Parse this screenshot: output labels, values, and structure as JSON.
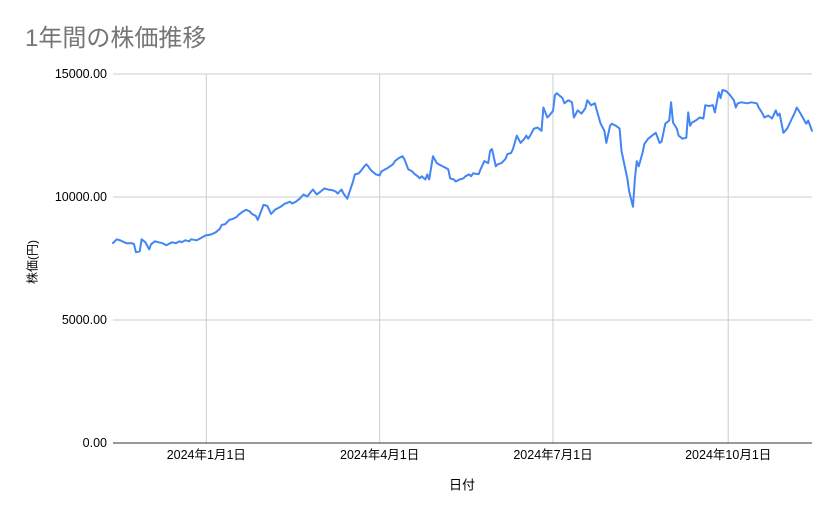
{
  "page": {
    "background": "#ffffff"
  },
  "header": {
    "title": "1年間の株価推移"
  },
  "chart_data": {
    "type": "line",
    "title": "1年間の株価推移",
    "xlabel": "日付",
    "ylabel": "株価(円)",
    "grid": true,
    "legend": "none",
    "colors": {
      "line": "#4285F4",
      "grid": "#cccccc",
      "axis": "#333333",
      "title_text": "#757575",
      "tick_text": "#000000"
    },
    "y_axis": {
      "min": 0,
      "max": 15000,
      "tick_step": 5000,
      "ticks": [
        {
          "value": 15000,
          "label": "15000.00"
        },
        {
          "value": 10000,
          "label": "10000.00"
        },
        {
          "value": 5000,
          "label": "5000.00"
        },
        {
          "value": 0,
          "label": "0.00"
        }
      ]
    },
    "x_axis": {
      "start_date": "2023-11-13",
      "end_date": "2024-11-14",
      "ticks": [
        {
          "date": "2024-01-01",
          "label": "2024年1月1日"
        },
        {
          "date": "2024-04-01",
          "label": "2024年4月1日"
        },
        {
          "date": "2024-07-01",
          "label": "2024年7月1日"
        },
        {
          "date": "2024-10-01",
          "label": "2024年10月1日"
        }
      ]
    },
    "series": [
      {
        "name": "株価",
        "points": [
          [
            "2023-11-13",
            8130
          ],
          [
            "2023-11-15",
            8280
          ],
          [
            "2023-11-17",
            8230
          ],
          [
            "2023-11-19",
            8160
          ],
          [
            "2023-11-20",
            8120
          ],
          [
            "2023-11-23",
            8120
          ],
          [
            "2023-11-24",
            8080
          ],
          [
            "2023-11-25",
            7760
          ],
          [
            "2023-11-27",
            7790
          ],
          [
            "2023-11-28",
            8280
          ],
          [
            "2023-11-30",
            8160
          ],
          [
            "2023-12-02",
            7870
          ],
          [
            "2023-12-03",
            8080
          ],
          [
            "2023-12-05",
            8200
          ],
          [
            "2023-12-07",
            8160
          ],
          [
            "2023-12-09",
            8120
          ],
          [
            "2023-12-11",
            8040
          ],
          [
            "2023-12-12",
            8080
          ],
          [
            "2023-12-14",
            8160
          ],
          [
            "2023-12-16",
            8120
          ],
          [
            "2023-12-18",
            8200
          ],
          [
            "2023-12-19",
            8160
          ],
          [
            "2023-12-21",
            8240
          ],
          [
            "2023-12-23",
            8200
          ],
          [
            "2023-12-24",
            8280
          ],
          [
            "2023-12-27",
            8240
          ],
          [
            "2023-12-28",
            8280
          ],
          [
            "2023-12-30",
            8370
          ],
          [
            "2024-01-01",
            8450
          ],
          [
            "2024-01-02",
            8450
          ],
          [
            "2024-01-04",
            8490
          ],
          [
            "2024-01-06",
            8570
          ],
          [
            "2024-01-08",
            8700
          ],
          [
            "2024-01-09",
            8860
          ],
          [
            "2024-01-11",
            8900
          ],
          [
            "2024-01-13",
            9070
          ],
          [
            "2024-01-15",
            9110
          ],
          [
            "2024-01-17",
            9190
          ],
          [
            "2024-01-18",
            9280
          ],
          [
            "2024-01-20",
            9400
          ],
          [
            "2024-01-22",
            9480
          ],
          [
            "2024-01-24",
            9400
          ],
          [
            "2024-01-25",
            9310
          ],
          [
            "2024-01-27",
            9230
          ],
          [
            "2024-01-28",
            9070
          ],
          [
            "2024-01-31",
            9680
          ],
          [
            "2024-02-02",
            9640
          ],
          [
            "2024-02-04",
            9310
          ],
          [
            "2024-02-06",
            9480
          ],
          [
            "2024-02-09",
            9600
          ],
          [
            "2024-02-11",
            9720
          ],
          [
            "2024-02-14",
            9810
          ],
          [
            "2024-02-15",
            9730
          ],
          [
            "2024-02-17",
            9810
          ],
          [
            "2024-02-19",
            9930
          ],
          [
            "2024-02-21",
            10100
          ],
          [
            "2024-02-23",
            10020
          ],
          [
            "2024-02-25",
            10220
          ],
          [
            "2024-02-26",
            10300
          ],
          [
            "2024-02-28",
            10100
          ],
          [
            "2024-03-01",
            10220
          ],
          [
            "2024-03-03",
            10350
          ],
          [
            "2024-03-05",
            10300
          ],
          [
            "2024-03-07",
            10280
          ],
          [
            "2024-03-09",
            10220
          ],
          [
            "2024-03-10",
            10140
          ],
          [
            "2024-03-12",
            10300
          ],
          [
            "2024-03-13",
            10140
          ],
          [
            "2024-03-15",
            9930
          ],
          [
            "2024-03-18",
            10630
          ],
          [
            "2024-03-19",
            10920
          ],
          [
            "2024-03-21",
            10960
          ],
          [
            "2024-03-22",
            11050
          ],
          [
            "2024-03-24",
            11250
          ],
          [
            "2024-03-25",
            11330
          ],
          [
            "2024-03-26",
            11250
          ],
          [
            "2024-03-27",
            11130
          ],
          [
            "2024-03-28",
            11050
          ],
          [
            "2024-03-30",
            10920
          ],
          [
            "2024-04-01",
            10880
          ],
          [
            "2024-04-02",
            11050
          ],
          [
            "2024-04-04",
            11130
          ],
          [
            "2024-04-05",
            11170
          ],
          [
            "2024-04-08",
            11330
          ],
          [
            "2024-04-09",
            11460
          ],
          [
            "2024-04-11",
            11580
          ],
          [
            "2024-04-13",
            11660
          ],
          [
            "2024-04-14",
            11540
          ],
          [
            "2024-04-16",
            11130
          ],
          [
            "2024-04-18",
            11050
          ],
          [
            "2024-04-19",
            10960
          ],
          [
            "2024-04-21",
            10840
          ],
          [
            "2024-04-22",
            10760
          ],
          [
            "2024-04-23",
            10840
          ],
          [
            "2024-04-25",
            10710
          ],
          [
            "2024-04-26",
            10920
          ],
          [
            "2024-04-27",
            10710
          ],
          [
            "2024-04-29",
            11660
          ],
          [
            "2024-05-01",
            11380
          ],
          [
            "2024-05-02",
            11330
          ],
          [
            "2024-05-04",
            11250
          ],
          [
            "2024-05-06",
            11170
          ],
          [
            "2024-05-07",
            11130
          ],
          [
            "2024-05-08",
            10760
          ],
          [
            "2024-05-10",
            10710
          ],
          [
            "2024-05-11",
            10630
          ],
          [
            "2024-05-13",
            10710
          ],
          [
            "2024-05-15",
            10760
          ],
          [
            "2024-05-16",
            10840
          ],
          [
            "2024-05-18",
            10920
          ],
          [
            "2024-05-19",
            10840
          ],
          [
            "2024-05-20",
            10960
          ],
          [
            "2024-05-23",
            10930
          ],
          [
            "2024-05-24",
            11130
          ],
          [
            "2024-05-26",
            11460
          ],
          [
            "2024-05-28",
            11380
          ],
          [
            "2024-05-29",
            11870
          ],
          [
            "2024-05-30",
            11950
          ],
          [
            "2024-06-01",
            11250
          ],
          [
            "2024-06-02",
            11330
          ],
          [
            "2024-06-04",
            11380
          ],
          [
            "2024-06-05",
            11460
          ],
          [
            "2024-06-06",
            11540
          ],
          [
            "2024-06-07",
            11740
          ],
          [
            "2024-06-09",
            11790
          ],
          [
            "2024-06-10",
            11950
          ],
          [
            "2024-06-12",
            12490
          ],
          [
            "2024-06-14",
            12200
          ],
          [
            "2024-06-16",
            12370
          ],
          [
            "2024-06-17",
            12490
          ],
          [
            "2024-06-18",
            12370
          ],
          [
            "2024-06-19",
            12490
          ],
          [
            "2024-06-21",
            12780
          ],
          [
            "2024-06-23",
            12820
          ],
          [
            "2024-06-25",
            12690
          ],
          [
            "2024-06-26",
            13640
          ],
          [
            "2024-06-28",
            13230
          ],
          [
            "2024-06-29",
            13310
          ],
          [
            "2024-07-01",
            13500
          ],
          [
            "2024-07-02",
            14140
          ],
          [
            "2024-07-03",
            14220
          ],
          [
            "2024-07-06",
            14020
          ],
          [
            "2024-07-07",
            13810
          ],
          [
            "2024-07-09",
            13930
          ],
          [
            "2024-07-11",
            13850
          ],
          [
            "2024-07-12",
            13230
          ],
          [
            "2024-07-14",
            13520
          ],
          [
            "2024-07-16",
            13390
          ],
          [
            "2024-07-18",
            13600
          ],
          [
            "2024-07-19",
            13930
          ],
          [
            "2024-07-21",
            13730
          ],
          [
            "2024-07-23",
            13810
          ],
          [
            "2024-07-24",
            13520
          ],
          [
            "2024-07-26",
            12980
          ],
          [
            "2024-07-28",
            12690
          ],
          [
            "2024-07-29",
            12200
          ],
          [
            "2024-07-31",
            12900
          ],
          [
            "2024-08-01",
            12980
          ],
          [
            "2024-08-03",
            12900
          ],
          [
            "2024-08-05",
            12780
          ],
          [
            "2024-08-06",
            11870
          ],
          [
            "2024-08-09",
            10760
          ],
          [
            "2024-08-10",
            10220
          ],
          [
            "2024-08-12",
            9600
          ],
          [
            "2024-08-13",
            10760
          ],
          [
            "2024-08-14",
            11460
          ],
          [
            "2024-08-15",
            11250
          ],
          [
            "2024-08-17",
            11790
          ],
          [
            "2024-08-18",
            12160
          ],
          [
            "2024-08-20",
            12370
          ],
          [
            "2024-08-22",
            12490
          ],
          [
            "2024-08-24",
            12610
          ],
          [
            "2024-08-26",
            12200
          ],
          [
            "2024-08-27",
            12240
          ],
          [
            "2024-08-29",
            12980
          ],
          [
            "2024-08-31",
            13110
          ],
          [
            "2024-09-01",
            13850
          ],
          [
            "2024-09-02",
            13030
          ],
          [
            "2024-09-04",
            12780
          ],
          [
            "2024-09-05",
            12490
          ],
          [
            "2024-09-07",
            12370
          ],
          [
            "2024-09-09",
            12410
          ],
          [
            "2024-09-10",
            13440
          ],
          [
            "2024-09-11",
            12900
          ],
          [
            "2024-09-12",
            13030
          ],
          [
            "2024-09-14",
            13110
          ],
          [
            "2024-09-16",
            13230
          ],
          [
            "2024-09-18",
            13190
          ],
          [
            "2024-09-19",
            13730
          ],
          [
            "2024-09-21",
            13700
          ],
          [
            "2024-09-23",
            13730
          ],
          [
            "2024-09-24",
            13440
          ],
          [
            "2024-09-26",
            14260
          ],
          [
            "2024-09-27",
            14020
          ],
          [
            "2024-09-28",
            14350
          ],
          [
            "2024-09-30",
            14300
          ],
          [
            "2024-10-02",
            14140
          ],
          [
            "2024-10-04",
            13930
          ],
          [
            "2024-10-05",
            13640
          ],
          [
            "2024-10-06",
            13810
          ],
          [
            "2024-10-08",
            13850
          ],
          [
            "2024-10-11",
            13810
          ],
          [
            "2024-10-13",
            13850
          ],
          [
            "2024-10-16",
            13810
          ],
          [
            "2024-10-17",
            13640
          ],
          [
            "2024-10-19",
            13390
          ],
          [
            "2024-10-20",
            13230
          ],
          [
            "2024-10-22",
            13310
          ],
          [
            "2024-10-24",
            13190
          ],
          [
            "2024-10-26",
            13520
          ],
          [
            "2024-10-27",
            13310
          ],
          [
            "2024-10-28",
            13390
          ],
          [
            "2024-10-30",
            12610
          ],
          [
            "2024-11-01",
            12780
          ],
          [
            "2024-11-03",
            13110
          ],
          [
            "2024-11-05",
            13440
          ],
          [
            "2024-11-06",
            13640
          ],
          [
            "2024-11-08",
            13390
          ],
          [
            "2024-11-10",
            13110
          ],
          [
            "2024-11-11",
            12980
          ],
          [
            "2024-11-12",
            13110
          ],
          [
            "2024-11-14",
            12690
          ]
        ]
      }
    ]
  }
}
